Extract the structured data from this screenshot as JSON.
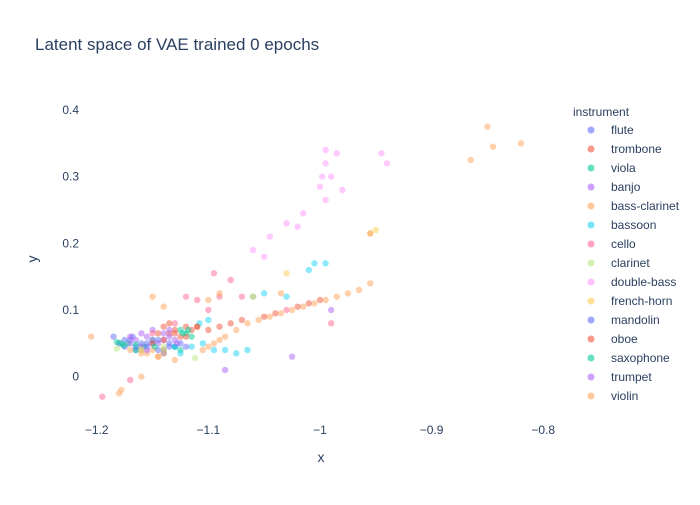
{
  "chart_data": {
    "type": "scatter",
    "title": "Latent space of VAE trained 0 epochs",
    "xlabel": "x",
    "ylabel": "y",
    "xlim": [
      -1.215,
      -0.785
    ],
    "ylim": [
      -0.065,
      0.43
    ],
    "xticks": [
      -1.2,
      -1.1,
      -1,
      -0.9,
      -0.8
    ],
    "xtick_labels": [
      "−1.2",
      "−1.1",
      "−1",
      "−0.9",
      "−0.8"
    ],
    "yticks": [
      0,
      0.1,
      0.2,
      0.3,
      0.4
    ],
    "ytick_labels": [
      "0",
      "0.1",
      "0.2",
      "0.3",
      "0.4"
    ],
    "grid": false,
    "legend": {
      "title": "instrument",
      "placement": "right"
    },
    "series": [
      {
        "name": "flute",
        "color": "#636efa",
        "points": [
          [
            -1.18,
            0.05
          ],
          [
            -1.175,
            0.045
          ],
          [
            -1.17,
            0.055
          ],
          [
            -1.165,
            0.04
          ],
          [
            -1.16,
            0.05
          ],
          [
            -1.155,
            0.045
          ],
          [
            -1.15,
            0.05
          ],
          [
            -1.145,
            0.04
          ],
          [
            -1.14,
            0.035
          ],
          [
            -1.135,
            0.05
          ],
          [
            -1.13,
            0.045
          ],
          [
            -1.168,
            0.06
          ]
        ]
      },
      {
        "name": "trombone",
        "color": "#EF553B",
        "points": [
          [
            -1.145,
            0.065
          ],
          [
            -1.14,
            0.075
          ],
          [
            -1.135,
            0.065
          ],
          [
            -1.13,
            0.07
          ],
          [
            -1.12,
            0.075
          ],
          [
            -1.115,
            0.07
          ],
          [
            -1.11,
            0.075
          ],
          [
            -1.125,
            0.06
          ],
          [
            -1.135,
            0.08
          ]
        ]
      },
      {
        "name": "viola",
        "color": "#00cc96",
        "points": [
          [
            -1.182,
            0.052
          ],
          [
            -1.176,
            0.047
          ],
          [
            -1.172,
            0.05
          ],
          [
            -1.165,
            0.04
          ],
          [
            -1.158,
            0.045
          ],
          [
            -1.15,
            0.055
          ],
          [
            -1.125,
            0.07
          ],
          [
            -1.12,
            0.065
          ],
          [
            -1.115,
            0.06
          ],
          [
            -1.13,
            0.045
          ],
          [
            -1.125,
            0.04
          ]
        ]
      },
      {
        "name": "banjo",
        "color": "#ab63fa",
        "points": [
          [
            -1.17,
            0.05
          ],
          [
            -1.165,
            0.055
          ],
          [
            -1.16,
            0.045
          ],
          [
            -1.155,
            0.06
          ],
          [
            -1.15,
            0.055
          ],
          [
            -1.145,
            0.05
          ],
          [
            -1.14,
            0.055
          ],
          [
            -1.135,
            0.06
          ],
          [
            -1.13,
            0.055
          ],
          [
            -1.15,
            0.07
          ],
          [
            -1.085,
            0.01
          ],
          [
            -1.025,
            0.03
          ]
        ]
      },
      {
        "name": "bass-clarinet",
        "color": "#FFA15A",
        "points": [
          [
            -1.16,
            0.04
          ],
          [
            -1.155,
            0.035
          ],
          [
            -1.15,
            0.04
          ],
          [
            -1.145,
            0.03
          ],
          [
            -1.14,
            0.035
          ],
          [
            -1.13,
            0.025
          ],
          [
            -1.105,
            0.04
          ],
          [
            -1.1,
            0.045
          ],
          [
            -1.095,
            0.05
          ],
          [
            -1.09,
            0.055
          ],
          [
            -1.085,
            0.06
          ],
          [
            -1.075,
            0.07
          ],
          [
            -1.065,
            0.08
          ],
          [
            -1.055,
            0.085
          ],
          [
            -1.045,
            0.09
          ],
          [
            -1.035,
            0.095
          ],
          [
            -1.025,
            0.1
          ],
          [
            -1.015,
            0.105
          ],
          [
            -1.005,
            0.11
          ],
          [
            -0.995,
            0.115
          ],
          [
            -0.985,
            0.12
          ],
          [
            -0.975,
            0.125
          ],
          [
            -0.965,
            0.13
          ],
          [
            -0.955,
            0.14
          ]
        ]
      },
      {
        "name": "bassoon",
        "color": "#19d3f3",
        "points": [
          [
            -1.14,
            0.04
          ],
          [
            -1.13,
            0.045
          ],
          [
            -1.125,
            0.035
          ],
          [
            -1.115,
            0.045
          ],
          [
            -1.105,
            0.05
          ],
          [
            -1.095,
            0.04
          ],
          [
            -1.085,
            0.04
          ],
          [
            -1.075,
            0.035
          ],
          [
            -1.065,
            0.04
          ],
          [
            -1.108,
            0.08
          ],
          [
            -1.1,
            0.085
          ],
          [
            -1.06,
            0.12
          ],
          [
            -1.05,
            0.125
          ],
          [
            -1.03,
            0.12
          ],
          [
            -1.01,
            0.16
          ],
          [
            -1.005,
            0.17
          ],
          [
            -0.995,
            0.17
          ]
        ]
      },
      {
        "name": "cello",
        "color": "#FF6692",
        "points": [
          [
            -1.195,
            -0.03
          ],
          [
            -1.17,
            -0.005
          ],
          [
            -1.15,
            0.065
          ],
          [
            -1.13,
            0.08
          ],
          [
            -1.12,
            0.12
          ],
          [
            -1.11,
            0.115
          ],
          [
            -1.1,
            0.1
          ],
          [
            -1.095,
            0.155
          ],
          [
            -1.09,
            0.12
          ],
          [
            -1.08,
            0.145
          ],
          [
            -1.07,
            0.12
          ],
          [
            -1.03,
            0.1
          ],
          [
            -0.99,
            0.08
          ]
        ]
      },
      {
        "name": "clarinet",
        "color": "#B6E880",
        "points": [
          [
            -1.182,
            0.042
          ],
          [
            -1.16,
            0.04
          ],
          [
            -1.14,
            0.045
          ],
          [
            -1.112,
            0.028
          ]
        ]
      },
      {
        "name": "double-bass",
        "color": "#FF97FF",
        "points": [
          [
            -1.06,
            0.19
          ],
          [
            -1.05,
            0.18
          ],
          [
            -1.045,
            0.21
          ],
          [
            -1.03,
            0.23
          ],
          [
            -1.02,
            0.225
          ],
          [
            -1.015,
            0.245
          ],
          [
            -1.0,
            0.285
          ],
          [
            -0.998,
            0.3
          ],
          [
            -0.995,
            0.32
          ],
          [
            -0.995,
            0.34
          ],
          [
            -0.99,
            0.3
          ],
          [
            -0.985,
            0.335
          ],
          [
            -0.98,
            0.28
          ],
          [
            -0.945,
            0.335
          ],
          [
            -0.94,
            0.32
          ],
          [
            -0.995,
            0.265
          ]
        ]
      },
      {
        "name": "french-horn",
        "color": "#FECB52",
        "points": [
          [
            -1.03,
            0.155
          ],
          [
            -1.06,
            0.12
          ],
          [
            -0.955,
            0.215
          ],
          [
            -0.95,
            0.22
          ]
        ]
      },
      {
        "name": "mandolin",
        "color": "#636efa",
        "points": [
          [
            -1.185,
            0.06
          ],
          [
            -1.175,
            0.055
          ],
          [
            -1.165,
            0.045
          ],
          [
            -1.155,
            0.05
          ],
          [
            -1.145,
            0.055
          ],
          [
            -1.135,
            0.045
          ],
          [
            -1.125,
            0.05
          ],
          [
            -1.12,
            0.045
          ]
        ]
      },
      {
        "name": "oboe",
        "color": "#EF553B",
        "points": [
          [
            -1.15,
            0.05
          ],
          [
            -1.14,
            0.055
          ],
          [
            -1.13,
            0.065
          ],
          [
            -1.12,
            0.06
          ],
          [
            -1.11,
            0.075
          ],
          [
            -1.1,
            0.07
          ],
          [
            -1.09,
            0.075
          ],
          [
            -1.08,
            0.08
          ],
          [
            -1.07,
            0.085
          ],
          [
            -1.05,
            0.09
          ],
          [
            -1.04,
            0.095
          ],
          [
            -1.02,
            0.105
          ],
          [
            -1.01,
            0.11
          ],
          [
            -1.0,
            0.115
          ]
        ]
      },
      {
        "name": "saxophone",
        "color": "#00cc96",
        "points": [
          [
            -1.178,
            0.05
          ],
          [
            -1.165,
            0.048
          ],
          [
            -1.148,
            0.045
          ],
          [
            -1.123,
            0.065
          ],
          [
            -1.118,
            0.07
          ]
        ]
      },
      {
        "name": "trumpet",
        "color": "#ab63fa",
        "points": [
          [
            -1.17,
            0.06
          ],
          [
            -1.16,
            0.065
          ],
          [
            -1.155,
            0.04
          ],
          [
            -1.14,
            0.065
          ],
          [
            -1.135,
            0.07
          ],
          [
            -1.128,
            0.05
          ],
          [
            -0.99,
            0.1
          ]
        ]
      },
      {
        "name": "violin",
        "color": "#FFA15A",
        "points": [
          [
            -1.205,
            0.06
          ],
          [
            -1.18,
            -0.025
          ],
          [
            -1.178,
            -0.02
          ],
          [
            -1.16,
            0.0
          ],
          [
            -1.15,
            0.12
          ],
          [
            -1.14,
            0.105
          ],
          [
            -1.1,
            0.115
          ],
          [
            -1.09,
            0.125
          ],
          [
            -1.17,
            0.04
          ],
          [
            -1.16,
            0.035
          ],
          [
            -1.145,
            0.03
          ],
          [
            -1.14,
            0.04
          ],
          [
            -1.035,
            0.125
          ],
          [
            -0.865,
            0.325
          ],
          [
            -0.85,
            0.375
          ],
          [
            -0.845,
            0.345
          ],
          [
            -0.82,
            0.35
          ],
          [
            -0.955,
            0.215
          ]
        ]
      }
    ]
  }
}
